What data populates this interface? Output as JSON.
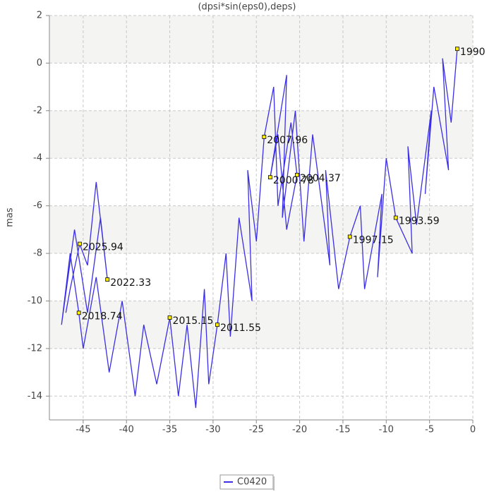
{
  "chart_data": {
    "type": "line",
    "title": "(dpsi*sin(eps0),deps)",
    "y_label": "mas",
    "xlim": [
      -48.9,
      0
    ],
    "ylim": [
      -15,
      2
    ],
    "xticks": [
      -45,
      -40,
      -35,
      -30,
      -25,
      -20,
      -15,
      -10,
      -5,
      0
    ],
    "yticks": [
      -14,
      -12,
      -10,
      -8,
      -6,
      -4,
      -2,
      0,
      2
    ],
    "grid": true,
    "band_color": "#f4f4f2",
    "legend": "bottom",
    "series": [
      {
        "name": "C0420",
        "color": "#3a2ee6",
        "x": [
          -1.8,
          -2.5,
          -3.5,
          -2.8,
          -4.5,
          -5.5,
          -4.8,
          -6.5,
          -7.5,
          -7,
          -8.9,
          -10,
          -11,
          -10.5,
          -12.5,
          -13,
          -14.2,
          -15.5,
          -17,
          -16.5,
          -18.5,
          -19.5,
          -20.5,
          -22,
          -21.5,
          -23.4,
          -22.5,
          -21.5,
          -20.3,
          -21,
          -22.5,
          -23,
          -24.1,
          -25,
          -26,
          -25.5,
          -27,
          -28,
          -28.5,
          -29.5,
          -30.5,
          -31,
          -32,
          -33,
          -34,
          -35,
          -36.5,
          -38,
          -39,
          -40.5,
          -42,
          -43.5,
          -45,
          -45.5,
          -46.5,
          -47.5,
          -46,
          -44.5,
          -43,
          -42.2,
          -43.5,
          -44.5,
          -45.4,
          -46.5,
          -47
        ],
        "values": [
          0.6,
          -2.5,
          0.2,
          -4.5,
          -1.0,
          -5.5,
          -2.0,
          -6.8,
          -3.5,
          -8.0,
          -6.5,
          -4.0,
          -9.0,
          -5.5,
          -9.5,
          -6.0,
          -7.3,
          -9.5,
          -4.5,
          -8.5,
          -3.0,
          -7.5,
          -2.0,
          -6.5,
          -0.5,
          -4.8,
          -3.0,
          -7.0,
          -4.7,
          -2.5,
          -6.0,
          -1.0,
          -3.1,
          -7.5,
          -4.5,
          -10.0,
          -6.5,
          -11.5,
          -8.0,
          -11.0,
          -13.5,
          -9.5,
          -14.5,
          -11.0,
          -14.0,
          -10.7,
          -13.5,
          -11.0,
          -14.0,
          -10.0,
          -13.0,
          -9.0,
          -12.0,
          -10.5,
          -8.0,
          -11.0,
          -7.0,
          -10.5,
          -6.5,
          -9.1,
          -5.0,
          -8.5,
          -7.6,
          -9.5,
          -10.5
        ]
      }
    ],
    "annotations": [
      {
        "text": "1990",
        "x": -1.8,
        "y": 0.6
      },
      {
        "text": "1993.59",
        "x": -8.9,
        "y": -6.5
      },
      {
        "text": "1997.15",
        "x": -14.2,
        "y": -7.3
      },
      {
        "text": "2000.78",
        "x": -23.4,
        "y": -4.8
      },
      {
        "text": "2004.37",
        "x": -20.3,
        "y": -4.7
      },
      {
        "text": "2007.96",
        "x": -24.1,
        "y": -3.1
      },
      {
        "text": "2011.55",
        "x": -29.5,
        "y": -11.0
      },
      {
        "text": "2015.15",
        "x": -35,
        "y": -10.7
      },
      {
        "text": "2018.74",
        "x": -45.5,
        "y": -10.5
      },
      {
        "text": "2022.33",
        "x": -42.2,
        "y": -9.1
      },
      {
        "text": "2025.94",
        "x": -45.4,
        "y": -7.6
      }
    ]
  }
}
